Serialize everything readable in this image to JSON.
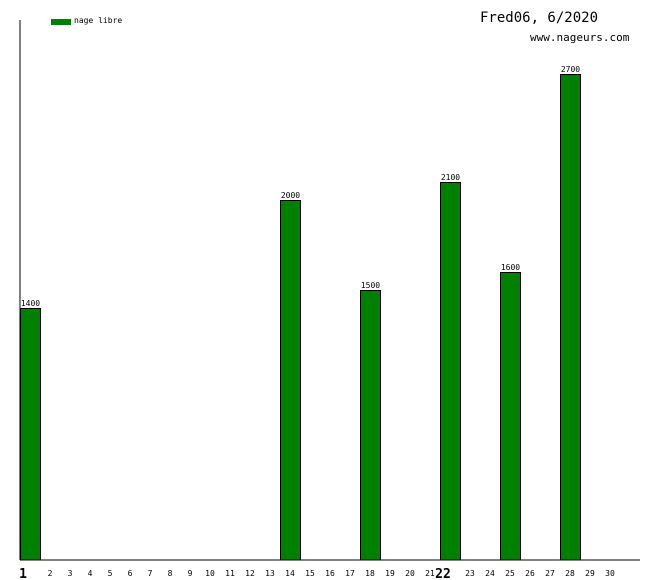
{
  "header": {
    "title": "Fred06, 6/2020",
    "site": "www.nageurs.com"
  },
  "legend": {
    "label": "nage libre",
    "color": "#008000"
  },
  "chart_data": {
    "type": "bar",
    "categories": [
      "1",
      "2",
      "3",
      "4",
      "5",
      "6",
      "7",
      "8",
      "9",
      "10",
      "11",
      "12",
      "13",
      "14",
      "15",
      "16",
      "17",
      "18",
      "19",
      "20",
      "21",
      "22",
      "23",
      "24",
      "25",
      "26",
      "27",
      "28",
      "29",
      "30"
    ],
    "highlighted_categories": [
      "1",
      "22"
    ],
    "series": [
      {
        "name": "nage libre",
        "color": "#008000",
        "values": [
          1400,
          null,
          null,
          null,
          null,
          null,
          null,
          null,
          null,
          null,
          null,
          null,
          null,
          2000,
          null,
          null,
          null,
          1500,
          null,
          null,
          null,
          2100,
          null,
          null,
          1600,
          null,
          null,
          2700,
          null,
          null
        ]
      }
    ],
    "ylim": [
      0,
      3000
    ],
    "grid": false,
    "legend_position": "top-left"
  }
}
